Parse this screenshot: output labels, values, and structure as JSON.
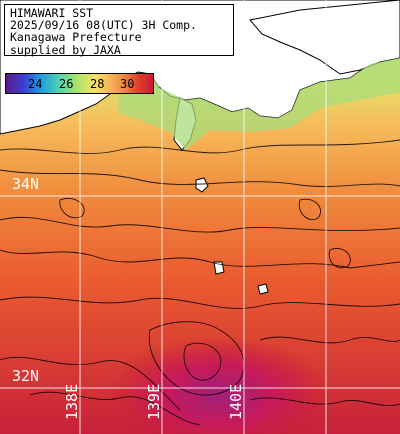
{
  "header": {
    "line1": "HIMAWARI SST",
    "line2": "2025/09/16 08(UTC) 3H Comp.",
    "line3": "Kanagawa Prefecture",
    "line4": "supplied by JAXA"
  },
  "colorbar": {
    "ticks": [
      "24",
      "26",
      "28",
      "30"
    ],
    "unit_hint": "°C"
  },
  "grid_labels": {
    "lat_north": "34N",
    "lat_south": "32N",
    "lon_west": "138E",
    "lon_mid": "139E",
    "lon_east": "140E"
  },
  "colors": {
    "land": "#ffffff",
    "sea_warm": "#f07a3c",
    "sea_hot": "#c81a3a",
    "sea_max": "#a0207a",
    "sea_cool": "#bfe26a",
    "gridline": "#ffffff",
    "contour": "#000000"
  }
}
